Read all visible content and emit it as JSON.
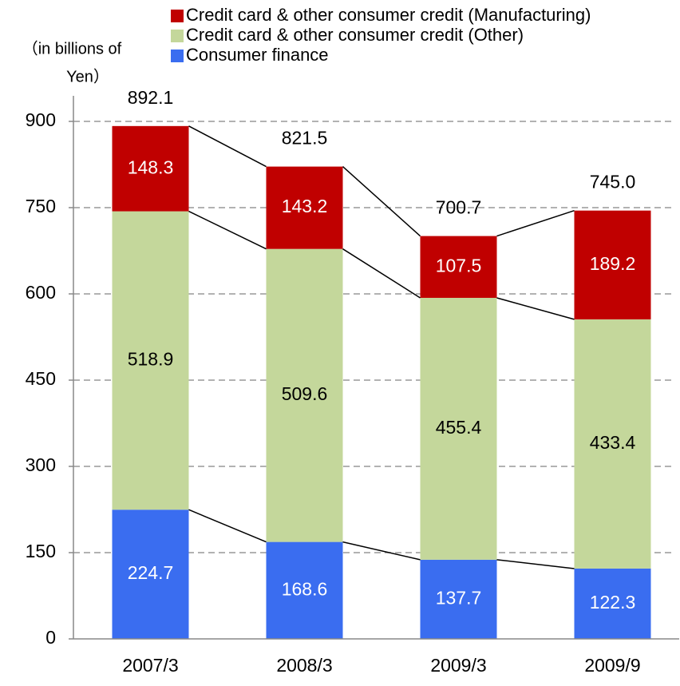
{
  "chart_data": {
    "type": "stacked_bar",
    "ylabel": [
      "（in billions of",
      "Yen）"
    ],
    "categories": [
      "2007/3",
      "2008/3",
      "2009/3",
      "2009/9"
    ],
    "series": [
      {
        "name": "Consumer finance",
        "color": "#3a6df0",
        "label_color": "#ffffff",
        "values": [
          224.7,
          168.6,
          137.7,
          122.3
        ]
      },
      {
        "name": "Credit card & other consumer credit (Other)",
        "color": "#c4d79b",
        "label_color": "#000000",
        "values": [
          518.9,
          509.6,
          455.4,
          433.4
        ]
      },
      {
        "name": "Credit card & other consumer credit (Manufacturing)",
        "color": "#c00000",
        "label_color": "#ffffff",
        "values": [
          148.3,
          143.2,
          107.5,
          189.2
        ]
      }
    ],
    "totals": [
      892.1,
      821.5,
      700.7,
      745
    ],
    "total_labels": [
      "892.1",
      "821.5",
      "700.7",
      "745.0"
    ],
    "ylim": [
      0,
      900
    ],
    "yticks": [
      0,
      150,
      300,
      450,
      600,
      750,
      900
    ],
    "grid": true
  }
}
